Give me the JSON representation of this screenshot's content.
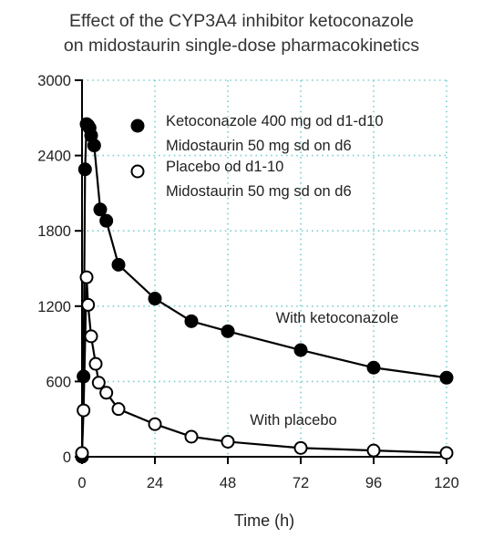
{
  "chart_data": {
    "type": "scatter",
    "title_lines": [
      "Effect of the CYP3A4 inhibitor ketoconazole",
      "on midostaurin single-dose pharmacokinetics"
    ],
    "xlabel": "Time (h)",
    "ylabel": "",
    "xlim": [
      0,
      120
    ],
    "ylim": [
      0,
      3000
    ],
    "xticks": [
      0,
      24,
      48,
      72,
      96,
      120
    ],
    "yticks": [
      0,
      600,
      1200,
      1800,
      2400,
      3000
    ],
    "grid": true,
    "legend_position": "top-right",
    "series": [
      {
        "legend": [
          "Ketoconazole 400 mg od d1-d10",
          "Midostaurin 50 mg sd on d6"
        ],
        "annotation": "With ketoconazole",
        "marker": "filled-circle",
        "color": "#000000",
        "points": [
          [
            0,
            0
          ],
          [
            0.5,
            640
          ],
          [
            1,
            2290
          ],
          [
            1.5,
            2650
          ],
          [
            2,
            2640
          ],
          [
            2.5,
            2620
          ],
          [
            3,
            2560
          ],
          [
            4,
            2480
          ],
          [
            6,
            1970
          ],
          [
            8,
            1880
          ],
          [
            12,
            1530
          ],
          [
            24,
            1260
          ],
          [
            36,
            1080
          ],
          [
            48,
            1000
          ],
          [
            72,
            850
          ],
          [
            96,
            710
          ],
          [
            120,
            630
          ]
        ]
      },
      {
        "legend": [
          "Placebo od d1-10",
          "Midostaurin 50 mg sd on d6"
        ],
        "annotation": "With placebo",
        "marker": "open-circle",
        "color": "#000000",
        "points": [
          [
            0,
            30
          ],
          [
            0.5,
            370
          ],
          [
            1.5,
            1430
          ],
          [
            2,
            1210
          ],
          [
            3,
            960
          ],
          [
            4.5,
            740
          ],
          [
            5.5,
            590
          ],
          [
            8,
            510
          ],
          [
            12,
            380
          ],
          [
            24,
            260
          ],
          [
            36,
            160
          ],
          [
            48,
            120
          ],
          [
            72,
            70
          ],
          [
            96,
            50
          ],
          [
            120,
            30
          ]
        ]
      }
    ]
  }
}
